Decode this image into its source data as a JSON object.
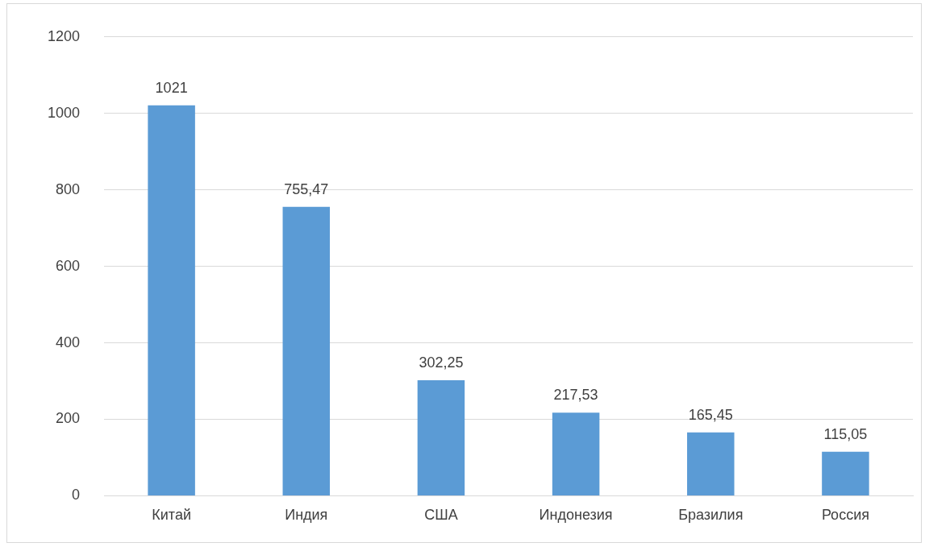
{
  "chart_data": {
    "type": "bar",
    "categories": [
      "Китай",
      "Индия",
      "США",
      "Индонезия",
      "Бразилия",
      "Россия"
    ],
    "values": [
      1021,
      755.47,
      302.25,
      217.53,
      165.45,
      115.05
    ],
    "color": "#5b9bd5",
    "value_labels": [
      "1021",
      "755,47",
      "302,25",
      "217,53",
      "165,45",
      "115,05"
    ],
    "ylim": [
      0,
      1200
    ],
    "yticks": [
      0,
      200,
      400,
      600,
      800,
      1000,
      1200
    ],
    "grid": "y",
    "legend": false
  }
}
